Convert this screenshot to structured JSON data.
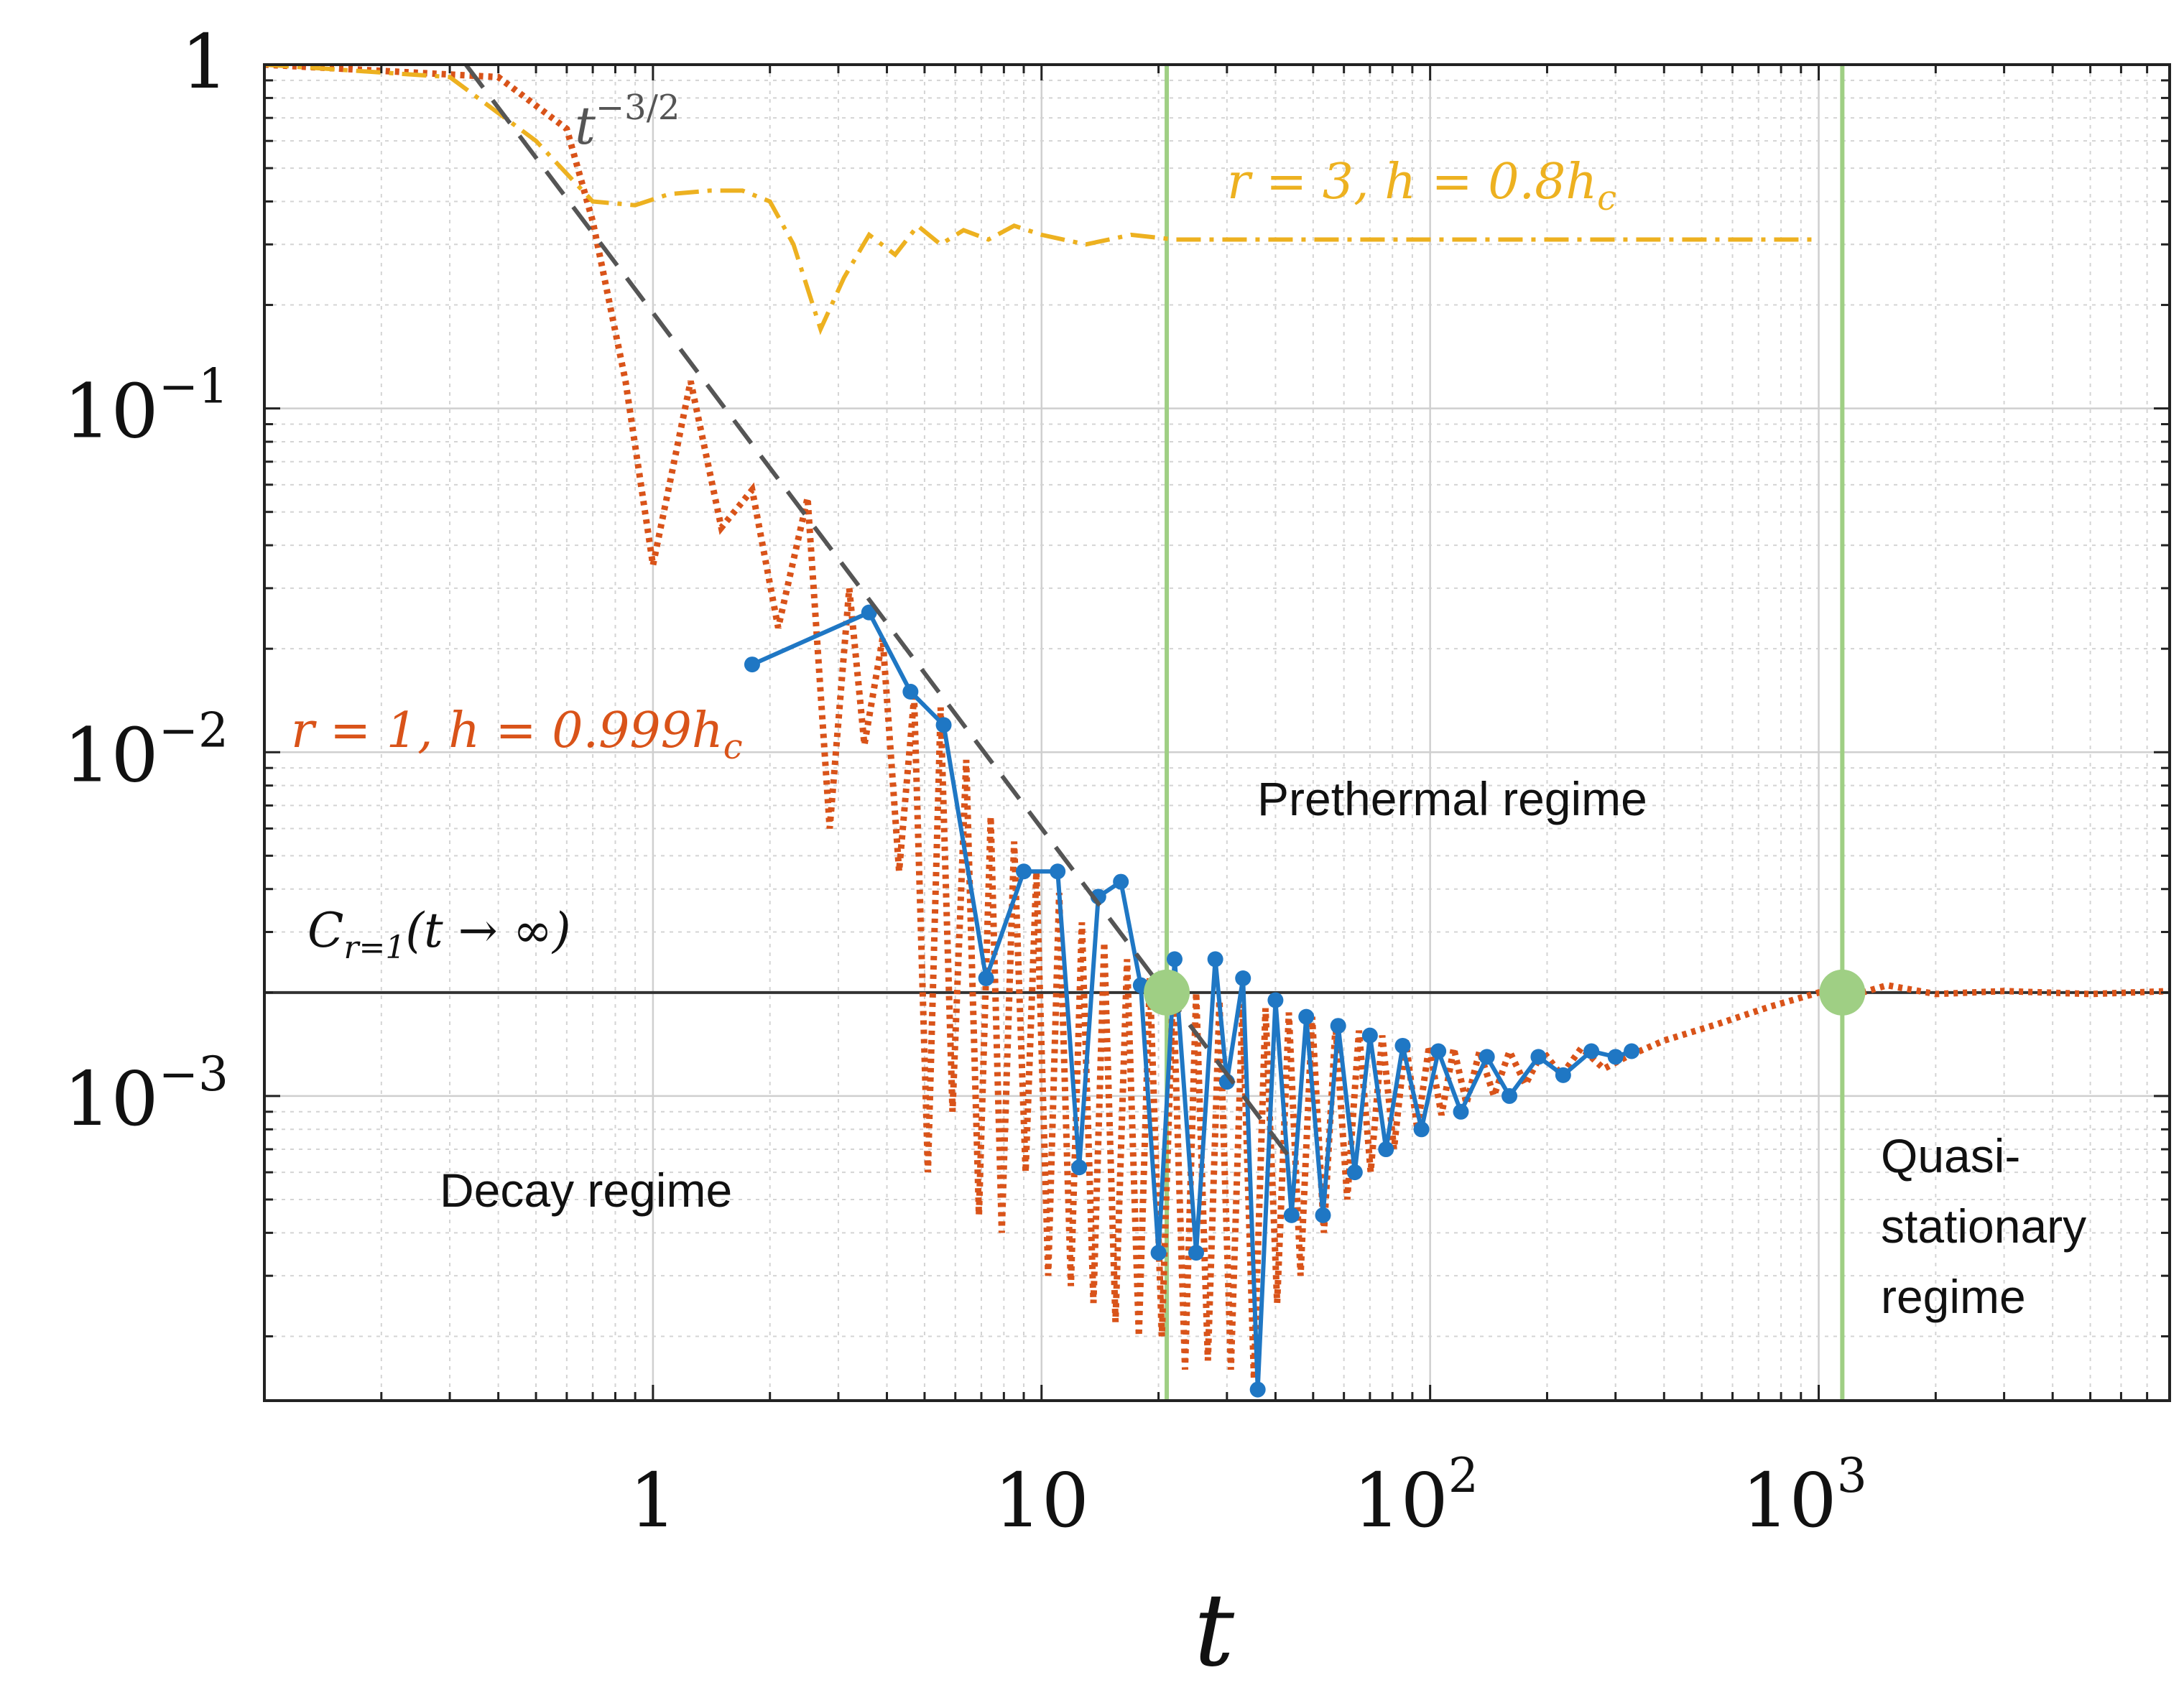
{
  "chart_data": {
    "type": "line",
    "x_scale": "log",
    "y_scale": "log",
    "xlim": [
      0.1,
      8000
    ],
    "ylim": [
      0.00013,
      1
    ],
    "grid": true,
    "xlabel": "t",
    "x_ticks": [
      {
        "value": 1,
        "label": "1",
        "exp": ""
      },
      {
        "value": 10,
        "label": "10",
        "exp": ""
      },
      {
        "value": 100,
        "label": "10",
        "exp": "2"
      },
      {
        "value": 1000,
        "label": "10",
        "exp": "3"
      }
    ],
    "y_ticks": [
      {
        "value": 1,
        "label": "1",
        "exp": ""
      },
      {
        "value": 0.1,
        "label": "10",
        "exp": "−1"
      },
      {
        "value": 0.01,
        "label": "10",
        "exp": "−2"
      },
      {
        "value": 0.001,
        "label": "10",
        "exp": "−3"
      }
    ],
    "colors": {
      "blue": "#1f77c4",
      "orange": "#d95319",
      "yellow": "#edb120",
      "green": "#9fcf84",
      "dashed": "#555555",
      "hline": "#333333"
    },
    "series": [
      {
        "key": "blue",
        "x": [
          1.8,
          3.6,
          4.6,
          5.6,
          7.2,
          9.0,
          11.0,
          12.5,
          14.0,
          16.0,
          18.0,
          20.0,
          22.0,
          25.0,
          28.0,
          30.0,
          33.0,
          36.0,
          40.0,
          44.0,
          48.0,
          53.0,
          58.0,
          64.0,
          70.0,
          77.0,
          85.0,
          95.0,
          105.0,
          120.0,
          140.0,
          160.0,
          190.0,
          220.0,
          260.0,
          300.0,
          330.0
        ],
        "y": [
          0.018,
          0.0255,
          0.015,
          0.012,
          0.0022,
          0.0045,
          0.0045,
          0.00062,
          0.0038,
          0.0042,
          0.0021,
          0.00035,
          0.0025,
          0.00035,
          0.0025,
          0.0011,
          0.0022,
          0.00014,
          0.0019,
          0.00045,
          0.0017,
          0.00045,
          0.0016,
          0.0006,
          0.0015,
          0.0007,
          0.0014,
          0.0008,
          0.00135,
          0.0009,
          0.0013,
          0.001,
          0.0013,
          0.00115,
          0.00135,
          0.0013,
          0.00135
        ]
      },
      {
        "key": "orange",
        "x": [
          0.1,
          0.4,
          0.6,
          0.7,
          0.85,
          1.0,
          1.25,
          1.5,
          1.8,
          2.1,
          2.5,
          2.85,
          3.2,
          3.5,
          3.9,
          4.3,
          4.7,
          5.1,
          5.5,
          5.9,
          6.4,
          6.9,
          7.4,
          7.9,
          8.5,
          9.1,
          9.7,
          10.4,
          11.1,
          11.9,
          12.7,
          13.6,
          14.5,
          15.5,
          16.6,
          17.8,
          19.0,
          20.4,
          21.8,
          23.4,
          25.0,
          26.8,
          28.7,
          30.7,
          32.9,
          35.2,
          37.7,
          40.4,
          43.3,
          46.4,
          49.7,
          53.3,
          57.1,
          61.2,
          65.6,
          70.3,
          75.3,
          80.7,
          86.5,
          92.7,
          99.4,
          107.0,
          115.0,
          124.0,
          134.0,
          146.0,
          160.0,
          176.0,
          195.0,
          218.0,
          245.0,
          280.0,
          320.0,
          400.0,
          550.0,
          750.0,
          1000.0,
          1200.0,
          1500.0,
          2000.0,
          3000.0,
          5000.0,
          8000.0
        ],
        "y": [
          1.0,
          0.92,
          0.65,
          0.35,
          0.12,
          0.035,
          0.12,
          0.045,
          0.058,
          0.023,
          0.055,
          0.006,
          0.03,
          0.0105,
          0.0215,
          0.0045,
          0.0145,
          0.0006,
          0.0135,
          0.0009,
          0.0095,
          0.00045,
          0.0065,
          0.0004,
          0.0055,
          0.0006,
          0.0045,
          0.0003,
          0.0039,
          0.00028,
          0.0032,
          0.00025,
          0.0028,
          0.00022,
          0.0025,
          0.0002,
          0.0022,
          0.0002,
          0.0021,
          0.00016,
          0.002,
          0.00017,
          0.0019,
          0.00016,
          0.00185,
          0.00015,
          0.0018,
          0.00025,
          0.00175,
          0.0003,
          0.0017,
          0.0004,
          0.0016,
          0.0005,
          0.00155,
          0.0006,
          0.0015,
          0.0007,
          0.00145,
          0.0008,
          0.0014,
          0.00088,
          0.00138,
          0.00095,
          0.00135,
          0.001,
          0.00135,
          0.00108,
          0.00135,
          0.00115,
          0.00138,
          0.0012,
          0.0013,
          0.00145,
          0.00162,
          0.00182,
          0.002,
          0.00195,
          0.0021,
          0.00198,
          0.00202,
          0.00198,
          0.00202
        ]
      },
      {
        "key": "yellow",
        "x": [
          0.1,
          0.3,
          0.5,
          0.7,
          0.9,
          1.1,
          1.4,
          1.7,
          2.0,
          2.3,
          2.7,
          3.1,
          3.6,
          4.2,
          4.8,
          5.5,
          6.3,
          7.3,
          8.5,
          10.0,
          13.0,
          17.0,
          22.0,
          30.0,
          40.0,
          60.0,
          100.0,
          200.0,
          400.0,
          1000.0
        ],
        "y": [
          1.0,
          0.92,
          0.6,
          0.4,
          0.39,
          0.42,
          0.43,
          0.43,
          0.4,
          0.3,
          0.17,
          0.24,
          0.32,
          0.28,
          0.34,
          0.3,
          0.33,
          0.31,
          0.34,
          0.32,
          0.3,
          0.32,
          0.31,
          0.31,
          0.31,
          0.31,
          0.31,
          0.31,
          0.31,
          0.31
        ]
      }
    ],
    "reference": {
      "power_law_label_base": "t",
      "power_law_label_exp": "−3/2",
      "power_law": {
        "x": [
          0.33,
          45.0
        ],
        "y": [
          1.0,
          0.00063
        ]
      },
      "asymptote_value": 0.002,
      "asymptote_label": "C",
      "asymptote_label_sub": "r=1",
      "asymptote_label_rest": "(t → ∞)",
      "transition_x": [
        21.0,
        1150.0
      ]
    },
    "annotations": {
      "yellow_label": "r = 3, h = 0.8h",
      "yellow_label_sub": "c",
      "orange_label": "r = 1, h = 0.999h",
      "orange_label_sub": "c",
      "prethermal": "Prethermal regime",
      "decay": "Decay regime",
      "quasi_line1": "Quasi-",
      "quasi_line2": "stationary",
      "quasi_line3": "regime"
    }
  }
}
